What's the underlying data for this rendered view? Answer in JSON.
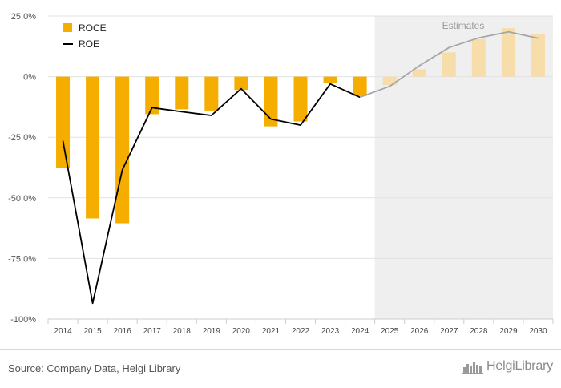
{
  "chart_data": {
    "type": "bar",
    "categories": [
      "2014",
      "2015",
      "2016",
      "2017",
      "2018",
      "2019",
      "2020",
      "2021",
      "2022",
      "2023",
      "2024",
      "2025",
      "2026",
      "2027",
      "2028",
      "2029",
      "2030"
    ],
    "estimate_from_index": 11,
    "estimates_label": "Estimates",
    "ylim": [
      -100,
      25
    ],
    "yticks": [
      25,
      0,
      -25,
      -50,
      -75,
      -100
    ],
    "ytick_labels": [
      "25.0%",
      "0%",
      "-25.0%",
      "-50.0%",
      "-75.0%",
      "-100%"
    ],
    "grid": true,
    "legend_position": "top-left",
    "series": [
      {
        "name": "ROCE",
        "type": "bar",
        "color": "#f5ad00",
        "estimate_color": "#f7ddaa",
        "values": [
          -37.5,
          -58.5,
          -60.5,
          -15.5,
          -13.5,
          -14.0,
          -5.5,
          -20.5,
          -18.5,
          -2.5,
          -8.0,
          -3.5,
          3.0,
          10.0,
          15.5,
          20.0,
          17.5
        ]
      },
      {
        "name": "ROE",
        "type": "line",
        "color": "#000000",
        "estimate_color": "#a6a6a6",
        "values": [
          -26.5,
          -93.5,
          -38.5,
          -12.8,
          -14.5,
          -16.0,
          -5.0,
          -17.5,
          -20.0,
          -3.0,
          -8.5,
          -4.0,
          4.5,
          12.0,
          16.0,
          18.5,
          15.8
        ]
      }
    ]
  },
  "footer": {
    "source": "Source: Company Data, Helgi Library",
    "brand": "HelgiLibrary"
  }
}
